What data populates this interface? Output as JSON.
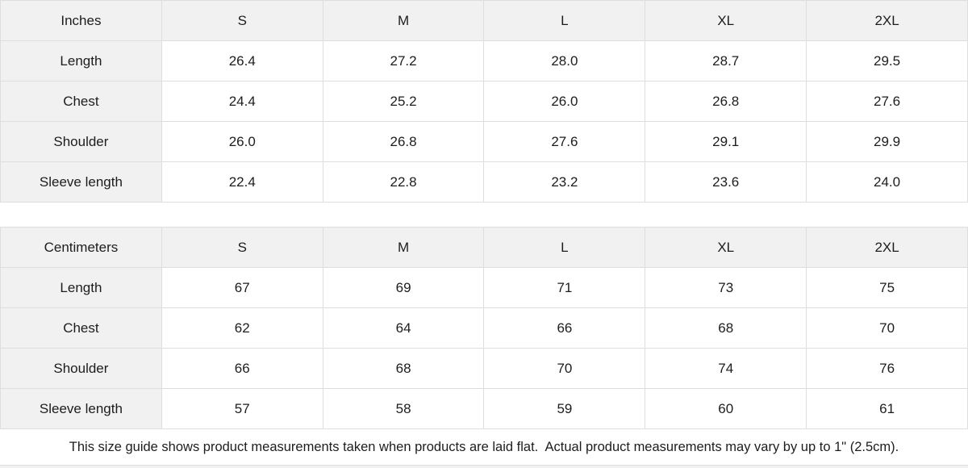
{
  "colors": {
    "header_bg": "#f1f1f1",
    "border": "#dedede",
    "text": "#1c1d1d"
  },
  "inches": {
    "unit_label": "Inches",
    "size_headers": [
      "S",
      "M",
      "L",
      "XL",
      "2XL"
    ],
    "rows": [
      {
        "label": "Length",
        "values": [
          "26.4",
          "27.2",
          "28.0",
          "28.7",
          "29.5"
        ]
      },
      {
        "label": "Chest",
        "values": [
          "24.4",
          "25.2",
          "26.0",
          "26.8",
          "27.6"
        ]
      },
      {
        "label": "Shoulder",
        "values": [
          "26.0",
          "26.8",
          "27.6",
          "29.1",
          "29.9"
        ]
      },
      {
        "label": "Sleeve length",
        "values": [
          "22.4",
          "22.8",
          "23.2",
          "23.6",
          "24.0"
        ]
      }
    ]
  },
  "centimeters": {
    "unit_label": "Centimeters",
    "size_headers": [
      "S",
      "M",
      "L",
      "XL",
      "2XL"
    ],
    "rows": [
      {
        "label": "Length",
        "values": [
          "67",
          "69",
          "71",
          "73",
          "75"
        ]
      },
      {
        "label": "Chest",
        "values": [
          "62",
          "64",
          "66",
          "68",
          "70"
        ]
      },
      {
        "label": "Shoulder",
        "values": [
          "66",
          "68",
          "70",
          "74",
          "76"
        ]
      },
      {
        "label": "Sleeve length",
        "values": [
          "57",
          "58",
          "59",
          "60",
          "61"
        ]
      }
    ]
  },
  "footer": {
    "note": "This size guide shows product measurements taken when products are laid flat.  Actual product measurements may vary by up to 1\" (2.5cm)."
  }
}
